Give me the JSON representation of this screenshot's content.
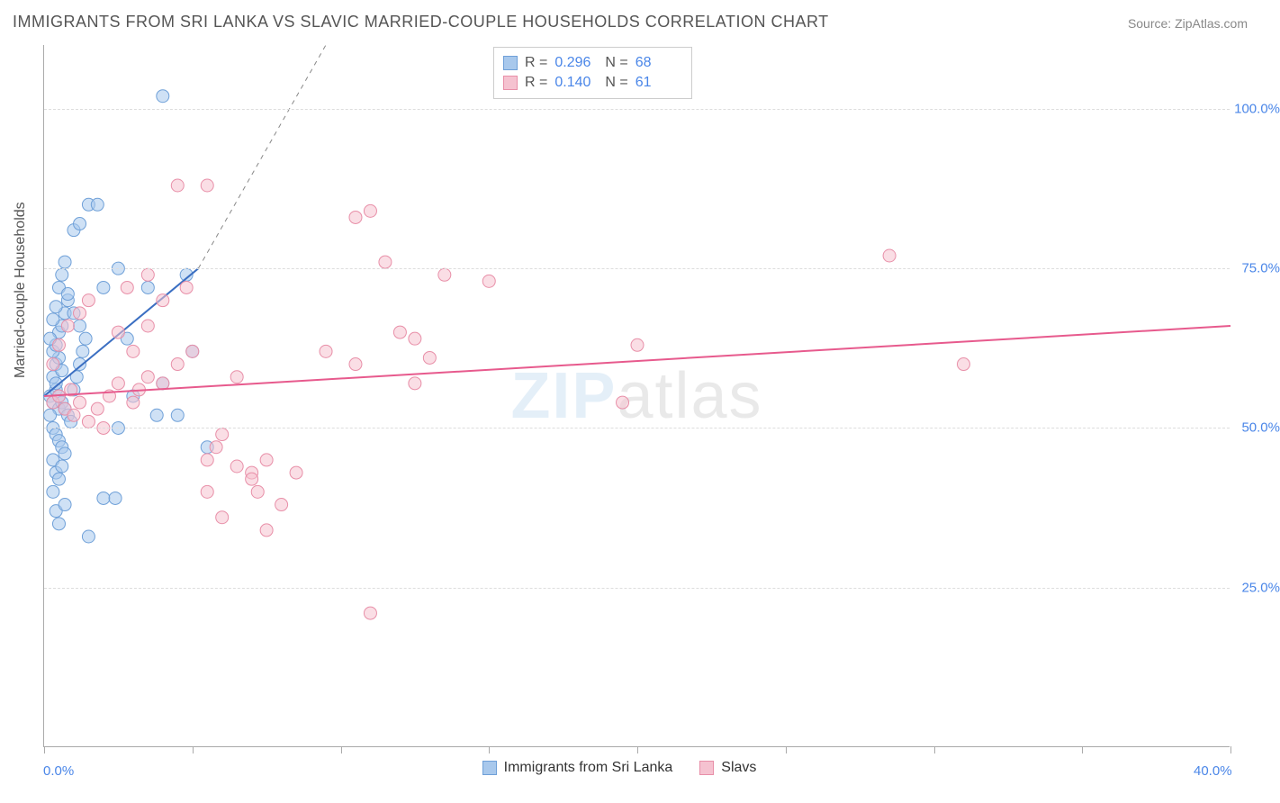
{
  "title": "IMMIGRANTS FROM SRI LANKA VS SLAVIC MARRIED-COUPLE HOUSEHOLDS CORRELATION CHART",
  "source": "Source: ZipAtlas.com",
  "watermark": {
    "part1": "ZIP",
    "part2": "atlas"
  },
  "chart": {
    "type": "scatter",
    "ylabel": "Married-couple Households",
    "xlim": [
      0,
      40
    ],
    "ylim": [
      0,
      110
    ],
    "xticks": [
      0,
      5,
      10,
      15,
      20,
      25,
      30,
      35,
      40
    ],
    "xtick_labels": {
      "0": "0.0%",
      "40": "40.0%"
    },
    "yticks": [
      25,
      50,
      75,
      100
    ],
    "ytick_labels": [
      "25.0%",
      "50.0%",
      "75.0%",
      "100.0%"
    ],
    "grid_color": "#dddddd",
    "axis_color": "#aaaaaa",
    "background_color": "#ffffff",
    "marker_radius": 7,
    "marker_opacity": 0.55,
    "trend_line_width": 2,
    "series": [
      {
        "name": "Immigrants from Sri Lanka",
        "fill": "#a8c8ec",
        "stroke": "#6fa0d8",
        "line_color": "#3b6fc2",
        "R": "0.296",
        "N": "68",
        "trend": {
          "x1": 0,
          "y1": 55,
          "x2": 5.2,
          "y2": 75,
          "dash_x2": 9.5,
          "dash_y2": 110
        },
        "points": [
          [
            0.2,
            55
          ],
          [
            0.3,
            54
          ],
          [
            0.4,
            56
          ],
          [
            0.5,
            53
          ],
          [
            0.3,
            58
          ],
          [
            0.4,
            60
          ],
          [
            0.5,
            61
          ],
          [
            0.6,
            59
          ],
          [
            0.2,
            52
          ],
          [
            0.3,
            50
          ],
          [
            0.4,
            49
          ],
          [
            0.5,
            48
          ],
          [
            0.6,
            47
          ],
          [
            0.7,
            46
          ],
          [
            0.3,
            62
          ],
          [
            0.4,
            63
          ],
          [
            0.5,
            65
          ],
          [
            0.6,
            66
          ],
          [
            0.7,
            68
          ],
          [
            0.8,
            70
          ],
          [
            0.4,
            57
          ],
          [
            0.5,
            55
          ],
          [
            0.6,
            54
          ],
          [
            0.7,
            53
          ],
          [
            0.8,
            52
          ],
          [
            0.9,
            51
          ],
          [
            1.0,
            56
          ],
          [
            1.1,
            58
          ],
          [
            1.2,
            60
          ],
          [
            1.3,
            62
          ],
          [
            0.3,
            45
          ],
          [
            0.4,
            43
          ],
          [
            0.5,
            42
          ],
          [
            0.6,
            44
          ],
          [
            0.2,
            64
          ],
          [
            0.3,
            67
          ],
          [
            0.4,
            69
          ],
          [
            0.5,
            72
          ],
          [
            1.5,
            85
          ],
          [
            1.8,
            85
          ],
          [
            1.0,
            81
          ],
          [
            1.2,
            82
          ],
          [
            0.6,
            74
          ],
          [
            0.7,
            76
          ],
          [
            0.8,
            71
          ],
          [
            0.4,
            37
          ],
          [
            0.5,
            35
          ],
          [
            0.3,
            40
          ],
          [
            0.7,
            38
          ],
          [
            1.5,
            33
          ],
          [
            2.0,
            39
          ],
          [
            2.4,
            39
          ],
          [
            2.5,
            50
          ],
          [
            3.0,
            55
          ],
          [
            3.5,
            72
          ],
          [
            3.8,
            52
          ],
          [
            4.0,
            57
          ],
          [
            4.5,
            52
          ],
          [
            4.8,
            74
          ],
          [
            4.0,
            102
          ],
          [
            5.0,
            62
          ],
          [
            5.5,
            47
          ],
          [
            2.0,
            72
          ],
          [
            2.5,
            75
          ],
          [
            2.8,
            64
          ],
          [
            1.0,
            68
          ],
          [
            1.2,
            66
          ],
          [
            1.4,
            64
          ]
        ]
      },
      {
        "name": "Slavs",
        "fill": "#f5c2d0",
        "stroke": "#e88fa8",
        "line_color": "#e75a8d",
        "R": "0.140",
        "N": "61",
        "trend": {
          "x1": 0,
          "y1": 55,
          "x2": 40,
          "y2": 66
        },
        "points": [
          [
            0.3,
            54
          ],
          [
            0.5,
            55
          ],
          [
            0.7,
            53
          ],
          [
            0.9,
            56
          ],
          [
            1.0,
            52
          ],
          [
            1.2,
            54
          ],
          [
            1.5,
            51
          ],
          [
            1.8,
            53
          ],
          [
            2.0,
            50
          ],
          [
            2.2,
            55
          ],
          [
            2.5,
            57
          ],
          [
            3.0,
            54
          ],
          [
            3.2,
            56
          ],
          [
            3.5,
            58
          ],
          [
            4.0,
            57
          ],
          [
            4.5,
            60
          ],
          [
            5.0,
            62
          ],
          [
            5.5,
            45
          ],
          [
            5.8,
            47
          ],
          [
            6.0,
            49
          ],
          [
            6.5,
            58
          ],
          [
            7.0,
            43
          ],
          [
            7.5,
            45
          ],
          [
            8.0,
            38
          ],
          [
            6.0,
            36
          ],
          [
            7.5,
            34
          ],
          [
            5.5,
            40
          ],
          [
            2.8,
            72
          ],
          [
            3.5,
            74
          ],
          [
            4.5,
            88
          ],
          [
            4.8,
            72
          ],
          [
            5.5,
            88
          ],
          [
            9.5,
            62
          ],
          [
            10.5,
            83
          ],
          [
            11.0,
            84
          ],
          [
            11.5,
            76
          ],
          [
            12.0,
            65
          ],
          [
            12.5,
            64
          ],
          [
            12.5,
            57
          ],
          [
            13.0,
            61
          ],
          [
            13.5,
            74
          ],
          [
            15.0,
            73
          ],
          [
            10.5,
            60
          ],
          [
            11.0,
            21
          ],
          [
            19.5,
            54
          ],
          [
            20.0,
            63
          ],
          [
            28.5,
            77
          ],
          [
            31.0,
            60
          ],
          [
            4.0,
            70
          ],
          [
            3.5,
            66
          ],
          [
            2.5,
            65
          ],
          [
            3.0,
            62
          ],
          [
            1.5,
            70
          ],
          [
            1.2,
            68
          ],
          [
            0.8,
            66
          ],
          [
            0.5,
            63
          ],
          [
            0.3,
            60
          ],
          [
            6.5,
            44
          ],
          [
            7.0,
            42
          ],
          [
            7.2,
            40
          ],
          [
            8.5,
            43
          ]
        ]
      }
    ],
    "legend_top": {
      "label_R": "R =",
      "label_N": "N ="
    },
    "legend_bottom": {
      "items": [
        {
          "label": "Immigrants from Sri Lanka",
          "fill": "#a8c8ec",
          "stroke": "#6fa0d8"
        },
        {
          "label": "Slavs",
          "fill": "#f5c2d0",
          "stroke": "#e88fa8"
        }
      ]
    }
  }
}
